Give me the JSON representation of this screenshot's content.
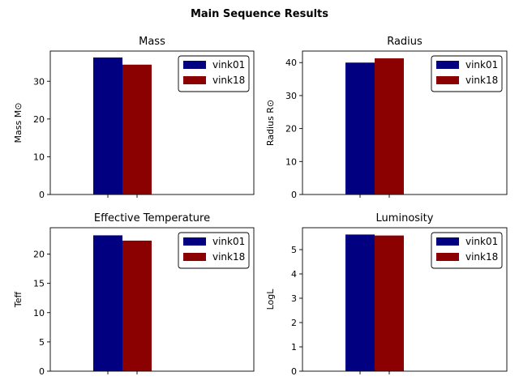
{
  "figure": {
    "title": "Main Sequence Results"
  },
  "colors": {
    "vink01": "#000080",
    "vink18": "#8b0000"
  },
  "chart_data": [
    {
      "type": "bar",
      "title": "Mass",
      "ylabel": "Mass M⊙",
      "ylim": [
        0,
        38
      ],
      "yticks": [
        0,
        10,
        20,
        30
      ],
      "series": [
        {
          "name": "vink01",
          "values": [
            36.3
          ]
        },
        {
          "name": "vink18",
          "values": [
            34.4
          ]
        }
      ],
      "legend": "top-right"
    },
    {
      "type": "bar",
      "title": "Radius",
      "ylabel": "Radius R⊙",
      "ylim": [
        0,
        43.5
      ],
      "yticks": [
        0,
        10,
        20,
        30,
        40
      ],
      "series": [
        {
          "name": "vink01",
          "values": [
            40.0
          ]
        },
        {
          "name": "vink18",
          "values": [
            41.3
          ]
        }
      ],
      "legend": "top-right"
    },
    {
      "type": "bar",
      "title": "Effective Temperature",
      "ylabel": "Teff",
      "ylim": [
        0,
        24.5
      ],
      "yticks": [
        0,
        5,
        10,
        15,
        20
      ],
      "series": [
        {
          "name": "vink01",
          "values": [
            23.2
          ]
        },
        {
          "name": "vink18",
          "values": [
            22.3
          ]
        }
      ],
      "legend": "top-right"
    },
    {
      "type": "bar",
      "title": "Luminosity",
      "ylabel": "LogL",
      "ylim": [
        0,
        5.9
      ],
      "yticks": [
        0,
        1,
        2,
        3,
        4,
        5
      ],
      "series": [
        {
          "name": "vink01",
          "values": [
            5.62
          ]
        },
        {
          "name": "vink18",
          "values": [
            5.58
          ]
        }
      ],
      "legend": "top-right"
    }
  ]
}
